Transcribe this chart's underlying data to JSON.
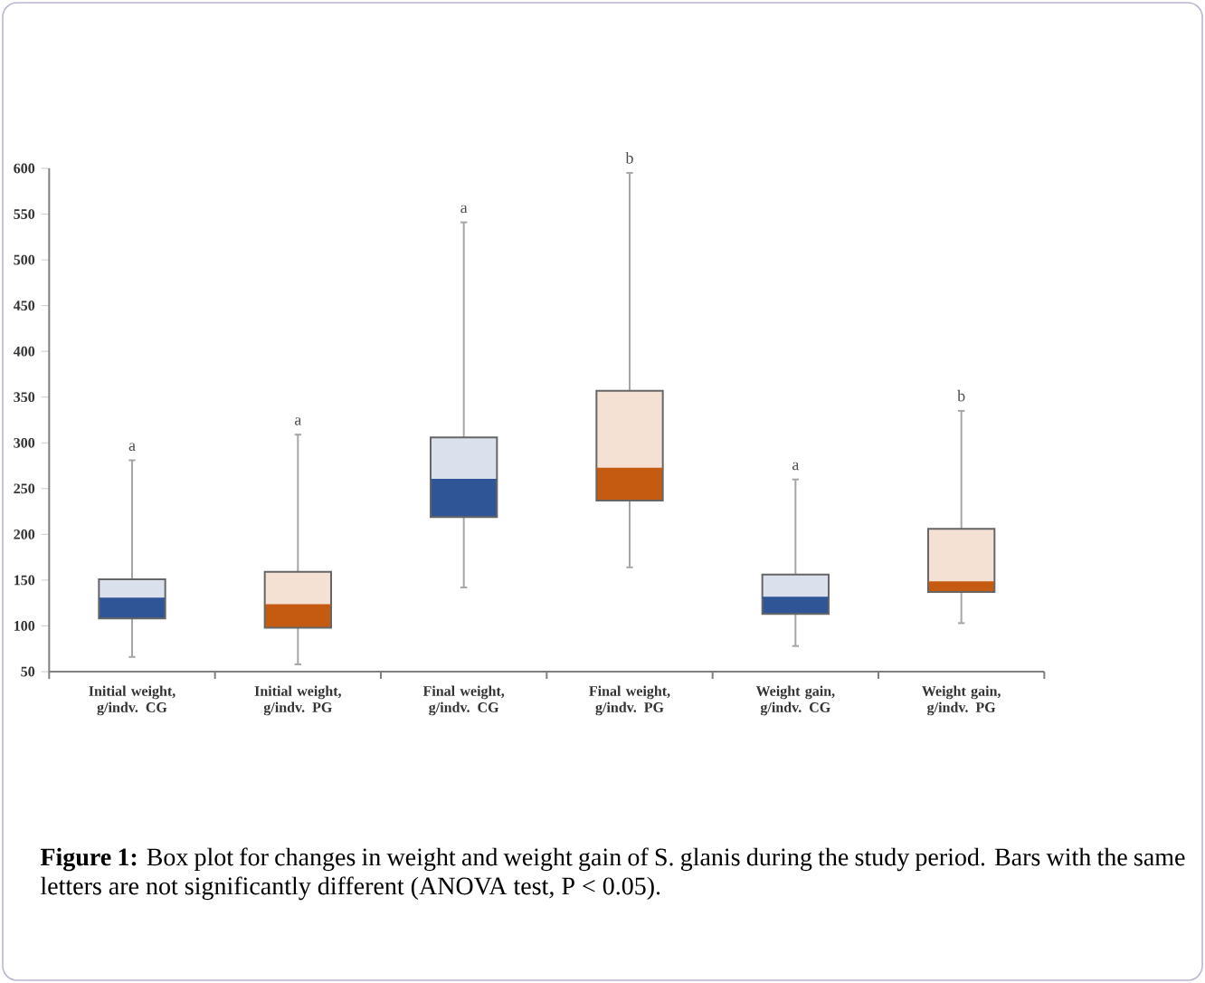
{
  "chart_data": {
    "type": "box",
    "categories": [
      "Initial weight, g/indv. CG",
      "Initial weight, g/indv. PG",
      "Final weight, g/indv. CG",
      "Final weight, g/indv. PG",
      "Weight gain, g/indv. CG",
      "Weight gain, g/indv. PG"
    ],
    "series": [
      {
        "color": "#2f5597",
        "boxes": [
          {
            "low": 66,
            "q1": 108,
            "median": 130,
            "q3": 151,
            "high": 281
          },
          null,
          {
            "low": 142,
            "q1": 219,
            "median": 260,
            "q3": 306,
            "high": 541
          },
          null,
          {
            "low": 78,
            "q1": 113,
            "median": 131,
            "q3": 156,
            "high": 260
          },
          null
        ]
      },
      {
        "color": "#c55a11",
        "boxes": [
          null,
          {
            "low": 58,
            "q1": 98,
            "median": 123,
            "q3": 159,
            "high": 309
          },
          null,
          {
            "low": 164,
            "q1": 237,
            "median": 272,
            "q3": 357,
            "high": 595
          },
          null,
          {
            "low": 103,
            "q1": 137,
            "median": 148,
            "q3": 206,
            "high": 335
          }
        ]
      }
    ],
    "ylim": [
      50,
      600
    ],
    "yticks": [
      50,
      100,
      150,
      200,
      250,
      300,
      350,
      400,
      450,
      500,
      550,
      600
    ],
    "annotations": [
      {
        "text": "a",
        "x": "Initial weight, g/indv. CG",
        "y": 281
      },
      {
        "text": "a",
        "x": "Initial weight, g/indv. PG",
        "y": 309
      },
      {
        "text": "a",
        "x": "Final weight, g/indv. CG",
        "y": 541
      },
      {
        "text": "b",
        "x": "Final weight, g/indv. PG",
        "y": 595
      },
      {
        "text": "a",
        "x": "Weight gain, g/indv. CG",
        "y": 260
      },
      {
        "text": "b",
        "x": "Weight gain, g/indv. PG",
        "y": 335
      },
      "**Figure 1:** Box plot for changes in weight and weight gain of S. glanis during the study period. Bars with the same letters are not significantly different (ANOVA test, P < 0.05)."
    ]
  }
}
